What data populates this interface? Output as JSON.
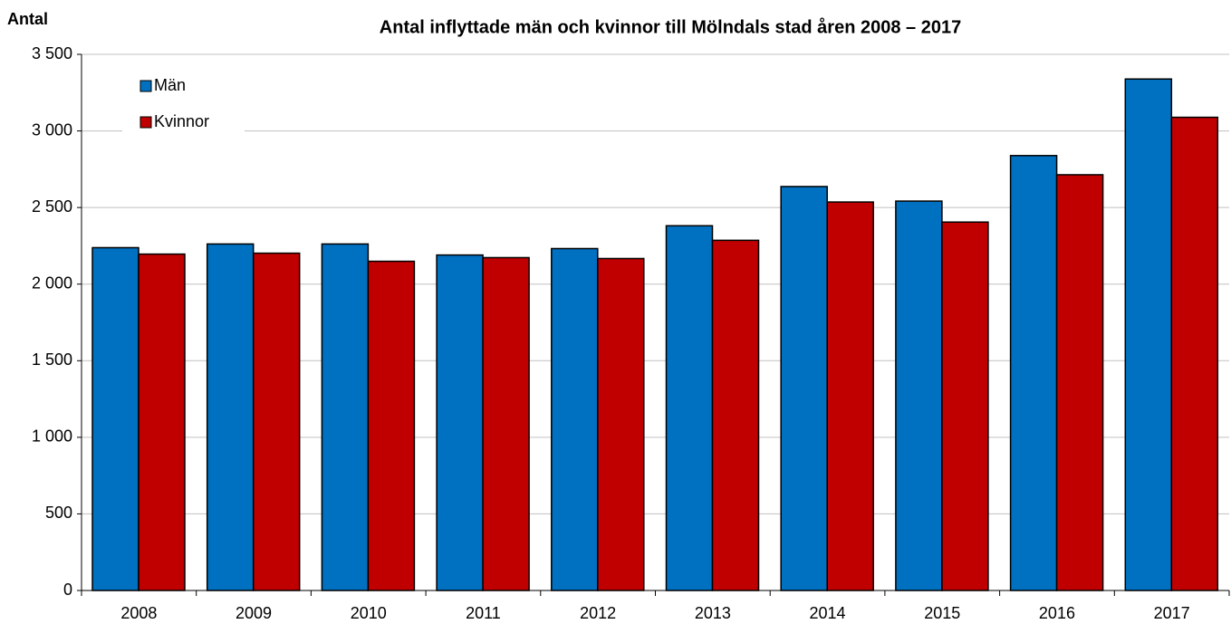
{
  "chart_data": {
    "type": "bar",
    "title": "Antal inflyttade män och kvinnor till Mölndals stad åren 2008 – 2017",
    "y_label": "Antal",
    "categories": [
      "2008",
      "2009",
      "2010",
      "2011",
      "2012",
      "2013",
      "2014",
      "2015",
      "2016",
      "2017"
    ],
    "series": [
      {
        "name": "Män",
        "color": "#0070c0",
        "values": [
          2238,
          2262,
          2262,
          2190,
          2232,
          2381,
          2637,
          2542,
          2839,
          3339
        ]
      },
      {
        "name": "Kvinnor",
        "color": "#c00000",
        "values": [
          2196,
          2202,
          2149,
          2173,
          2167,
          2286,
          2536,
          2405,
          2714,
          3089
        ]
      }
    ],
    "ylim": [
      0,
      3500
    ],
    "yticks": [
      0,
      500,
      {
        "value": 1000,
        "label": "1 000"
      },
      {
        "value": 1500,
        "label": "1 500"
      },
      {
        "value": 2000,
        "label": "2 000"
      },
      {
        "value": 2500,
        "label": "2 500"
      },
      {
        "value": 3000,
        "label": "3 000"
      },
      {
        "value": 3500,
        "label": "3 500"
      }
    ],
    "grid": true,
    "legend": "top-left"
  }
}
